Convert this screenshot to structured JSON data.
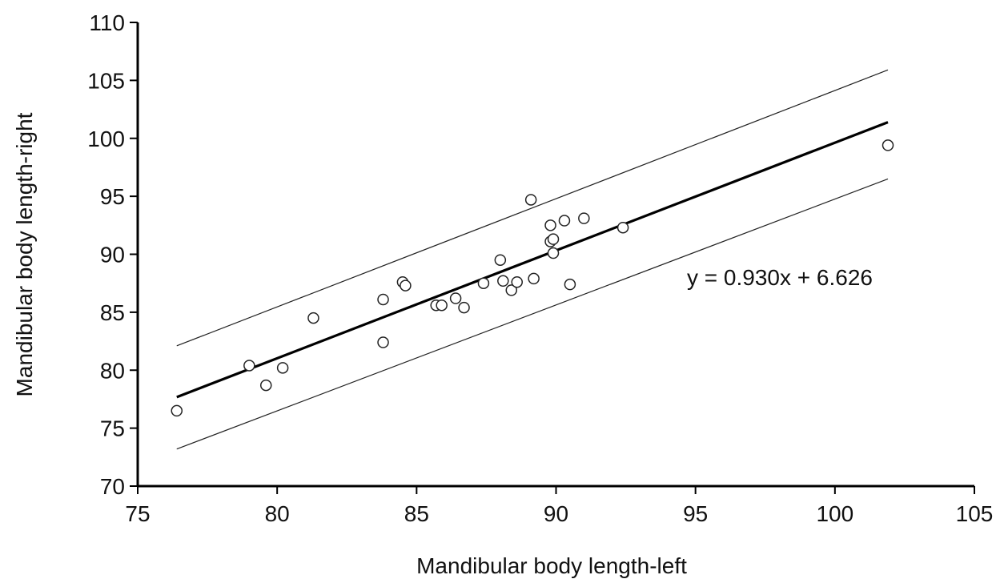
{
  "chart_data": {
    "type": "scatter",
    "title": "",
    "xlabel": "Mandibular body length-left",
    "ylabel": "Mandibular body length-right",
    "xlim": [
      75,
      105
    ],
    "ylim": [
      70,
      110
    ],
    "xticks": [
      75,
      80,
      85,
      90,
      95,
      100,
      105
    ],
    "yticks": [
      70,
      75,
      80,
      85,
      90,
      95,
      100,
      105,
      110
    ],
    "grid": false,
    "points": [
      {
        "x": 76.4,
        "y": 76.5
      },
      {
        "x": 79.0,
        "y": 80.4
      },
      {
        "x": 79.6,
        "y": 78.7
      },
      {
        "x": 80.2,
        "y": 80.2
      },
      {
        "x": 81.3,
        "y": 84.5
      },
      {
        "x": 83.8,
        "y": 86.1
      },
      {
        "x": 83.8,
        "y": 82.4
      },
      {
        "x": 84.5,
        "y": 87.6
      },
      {
        "x": 84.6,
        "y": 87.3
      },
      {
        "x": 85.7,
        "y": 85.6
      },
      {
        "x": 85.9,
        "y": 85.6
      },
      {
        "x": 86.4,
        "y": 86.2
      },
      {
        "x": 86.7,
        "y": 85.4
      },
      {
        "x": 87.4,
        "y": 87.5
      },
      {
        "x": 88.0,
        "y": 89.5
      },
      {
        "x": 88.1,
        "y": 87.7
      },
      {
        "x": 88.4,
        "y": 86.9
      },
      {
        "x": 88.6,
        "y": 87.6
      },
      {
        "x": 89.1,
        "y": 94.7
      },
      {
        "x": 89.2,
        "y": 87.9
      },
      {
        "x": 89.8,
        "y": 92.5
      },
      {
        "x": 89.8,
        "y": 91.1
      },
      {
        "x": 89.9,
        "y": 91.3
      },
      {
        "x": 89.9,
        "y": 90.1
      },
      {
        "x": 90.3,
        "y": 92.9
      },
      {
        "x": 90.5,
        "y": 87.4
      },
      {
        "x": 91.0,
        "y": 93.1
      },
      {
        "x": 92.4,
        "y": 92.3
      },
      {
        "x": 101.9,
        "y": 99.4
      }
    ],
    "regression": {
      "slope": 0.93,
      "intercept": 6.626,
      "x_range": [
        76.4,
        101.9
      ],
      "equation_label": "y = 0.930x + 6.626"
    },
    "prediction_band": {
      "x": [
        76.4,
        101.9
      ],
      "upper": [
        82.1,
        105.9
      ],
      "lower": [
        73.2,
        96.5
      ]
    }
  }
}
